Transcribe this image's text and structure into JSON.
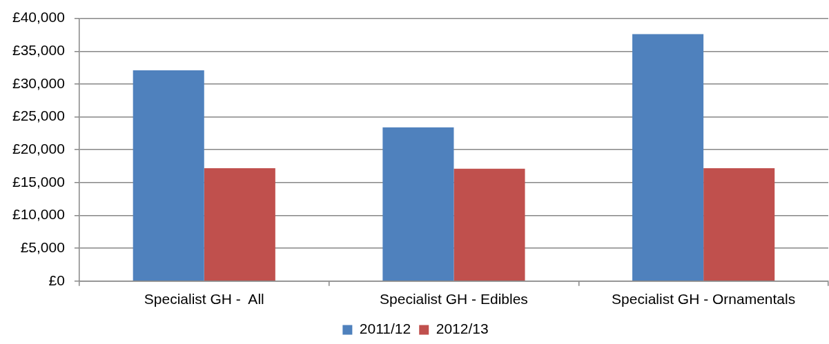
{
  "chart_data": {
    "type": "bar",
    "categories": [
      "Specialist GH -  All",
      "Specialist GH - Edibles",
      "Specialist GH - Ornamentals"
    ],
    "series": [
      {
        "name": "2011/12",
        "color": "#4f81bd",
        "values": [
          32100,
          23400,
          37600
        ]
      },
      {
        "name": "2012/13",
        "color": "#c0504d",
        "values": [
          17200,
          17100,
          17200
        ]
      }
    ],
    "ylim": [
      0,
      40000
    ],
    "yticks": [
      {
        "value": 0,
        "label": "£0"
      },
      {
        "value": 5000,
        "label": "£5,000"
      },
      {
        "value": 10000,
        "label": "£10,000"
      },
      {
        "value": 15000,
        "label": "£15,000"
      },
      {
        "value": 20000,
        "label": "£20,000"
      },
      {
        "value": 25000,
        "label": "£25,000"
      },
      {
        "value": 30000,
        "label": "£30,000"
      },
      {
        "value": 35000,
        "label": "£35,000"
      },
      {
        "value": 40000,
        "label": "£40,000"
      }
    ],
    "grid": "y",
    "legend": "bottom"
  }
}
